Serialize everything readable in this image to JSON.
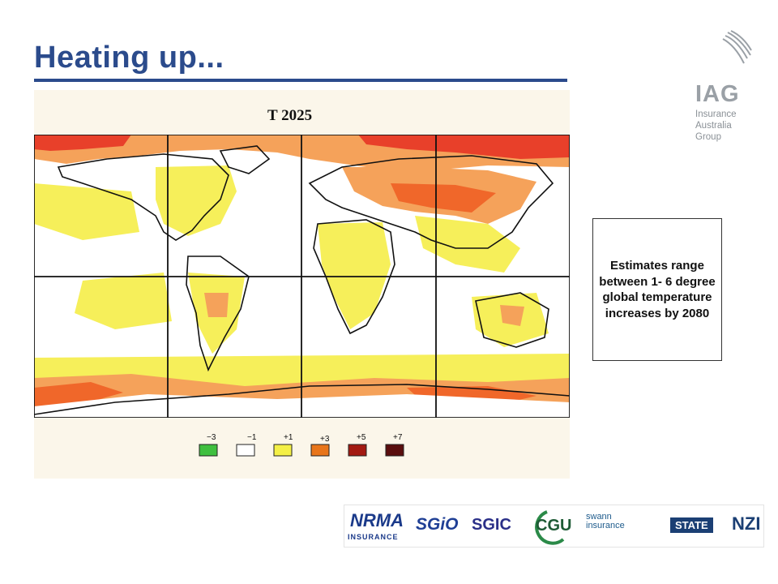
{
  "slide": {
    "title": "Heating up..."
  },
  "logo": {
    "letters": "IAG",
    "sub_lines": [
      "Insurance",
      "Australia",
      "Group"
    ],
    "icon": "crescent-swirl-logo-icon"
  },
  "map": {
    "title": "T  2025",
    "legend_ticks": [
      "−3",
      "−1",
      "+1",
      "+3",
      "+5",
      "+7"
    ],
    "legend_colors": [
      "#3fbf3f",
      "#ffffff",
      "#f4f046",
      "#e8751a",
      "#a31a12",
      "#5a0e0e"
    ],
    "colors": {
      "yellow": "#f6ef5a",
      "orange": "#f5a25a",
      "dark_orange": "#f0672a",
      "red": "#e8402a",
      "land_outline": "#111111",
      "background": "#fbf6ea"
    }
  },
  "note": {
    "text": "Estimates range between 1- 6 degree global temperature increases by 2080"
  },
  "brands": {
    "nrma": "NRMA",
    "nrma_sub": "INSURANCE",
    "sgio": "SGiO",
    "sgic": "SGIC",
    "cgu": "CGU",
    "swann_line1": "swann",
    "swann_line2": "insurance",
    "state": "STATE",
    "nzi": "NZI"
  }
}
